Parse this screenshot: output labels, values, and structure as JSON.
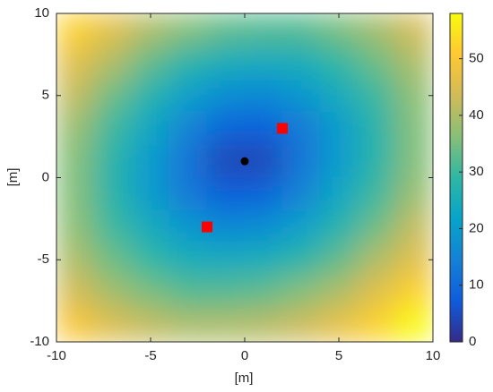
{
  "chart_data": {
    "type": "heatmap",
    "xlabel": "[m]",
    "ylabel": "[m]",
    "xlim": [
      -10,
      10
    ],
    "ylim": [
      -10,
      10
    ],
    "xticks": [
      -10,
      -5,
      0,
      5,
      10
    ],
    "yticks": [
      -10,
      -5,
      0,
      5,
      10
    ],
    "x": [
      -9,
      -7,
      -5,
      -3,
      -1,
      1,
      3,
      5,
      7,
      9
    ],
    "y": [
      9,
      7,
      5,
      3,
      1,
      -1,
      -3,
      -5,
      -7,
      -9
    ],
    "z": [
      [
        52,
        46,
        40,
        36,
        33,
        32,
        32,
        35,
        39,
        44
      ],
      [
        46,
        40,
        33,
        28,
        25,
        24,
        25,
        29,
        34,
        40
      ],
      [
        42,
        34,
        27,
        21,
        17,
        16,
        19,
        24,
        30,
        37
      ],
      [
        38,
        30,
        23,
        15,
        9,
        8,
        13,
        20,
        28,
        36
      ],
      [
        36,
        28,
        20,
        12,
        4,
        4,
        12,
        20,
        28,
        36
      ],
      [
        36,
        28,
        20,
        13,
        8,
        9,
        15,
        23,
        30,
        38
      ],
      [
        37,
        30,
        24,
        19,
        16,
        17,
        21,
        27,
        34,
        42
      ],
      [
        40,
        34,
        29,
        25,
        24,
        25,
        28,
        33,
        40,
        46
      ],
      [
        44,
        39,
        35,
        32,
        32,
        33,
        36,
        40,
        46,
        52
      ],
      [
        50,
        45,
        42,
        40,
        40,
        41,
        43,
        47,
        52,
        58
      ]
    ],
    "clim": [
      0,
      58
    ],
    "cticks": [
      0,
      10,
      20,
      30,
      40,
      50
    ],
    "colormap": [
      "#352a87",
      "#0f5cdd",
      "#1481d6",
      "#06a4ca",
      "#2eb7a4",
      "#87bf77",
      "#d1bb59",
      "#fec832",
      "#f9fb0e"
    ],
    "anchors": {
      "x": [
        2,
        -2
      ],
      "y": [
        3,
        -3
      ],
      "color": "#ff0000"
    },
    "target": {
      "x": [
        0
      ],
      "y": [
        1
      ],
      "color": "#000000"
    }
  }
}
